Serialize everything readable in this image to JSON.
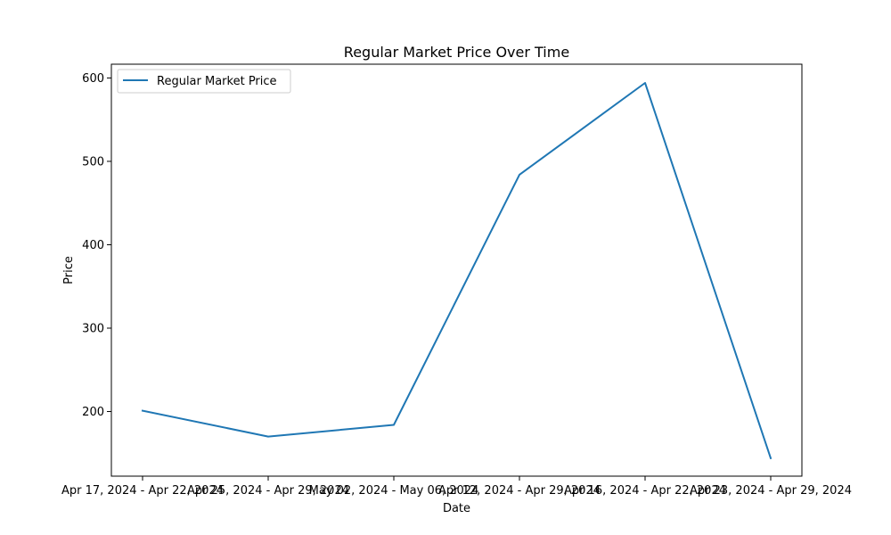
{
  "chart_data": {
    "type": "line",
    "title": "Regular Market Price Over Time",
    "xlabel": "Date",
    "ylabel": "Price",
    "categories": [
      "Apr 17, 2024 - Apr 22, 2024",
      "Apr 25, 2024 - Apr 29, 2024",
      "May 02, 2024 - May 06, 2024",
      "Apr 12, 2024 - Apr 29, 2024",
      "Apr 16, 2024 - Apr 22, 2024",
      "Apr 23, 2024 - Apr 29, 2024"
    ],
    "series": [
      {
        "name": "Regular Market Price",
        "color": "#1f77b4",
        "values": [
          201,
          170,
          184,
          484,
          594,
          144
        ]
      }
    ],
    "yticks": [
      200,
      300,
      400,
      500,
      600
    ],
    "ylim": [
      122.5,
      616.5
    ],
    "grid": false,
    "legend": "top-left"
  }
}
